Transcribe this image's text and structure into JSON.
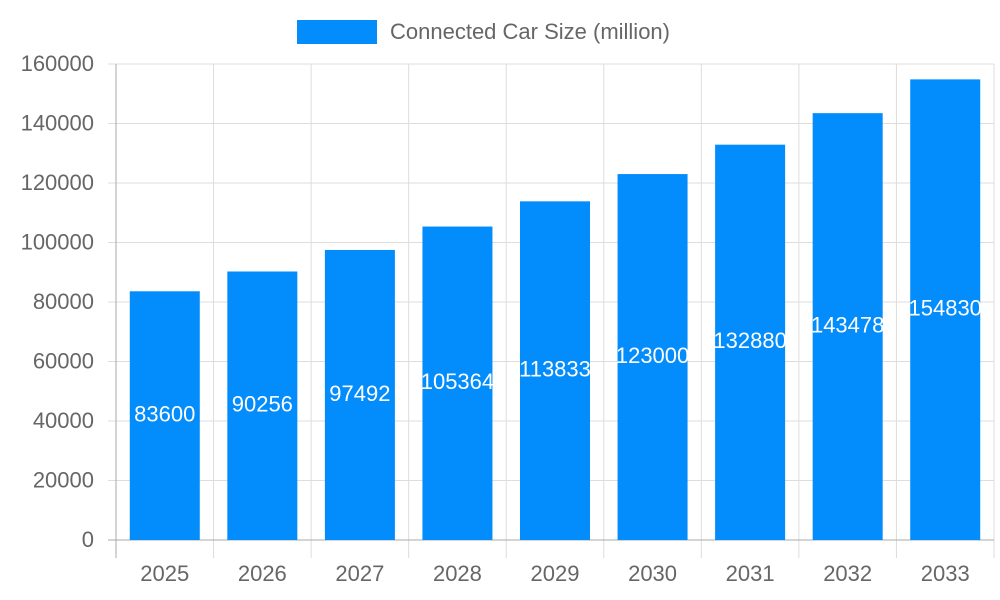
{
  "chart_data": {
    "type": "bar",
    "categories": [
      "2025",
      "2026",
      "2027",
      "2028",
      "2029",
      "2030",
      "2031",
      "2032",
      "2033"
    ],
    "series": [
      {
        "name": "Connected Car Size (million)",
        "color": "#038cfb",
        "values": [
          83600,
          90256,
          97492,
          105364,
          113833,
          123000,
          132880,
          143478,
          154830
        ]
      }
    ],
    "ylim": [
      0,
      160000
    ],
    "yticks": [
      0,
      20000,
      40000,
      60000,
      80000,
      100000,
      120000,
      140000,
      160000
    ],
    "grid": true,
    "legend": "top",
    "data_labels": true
  }
}
